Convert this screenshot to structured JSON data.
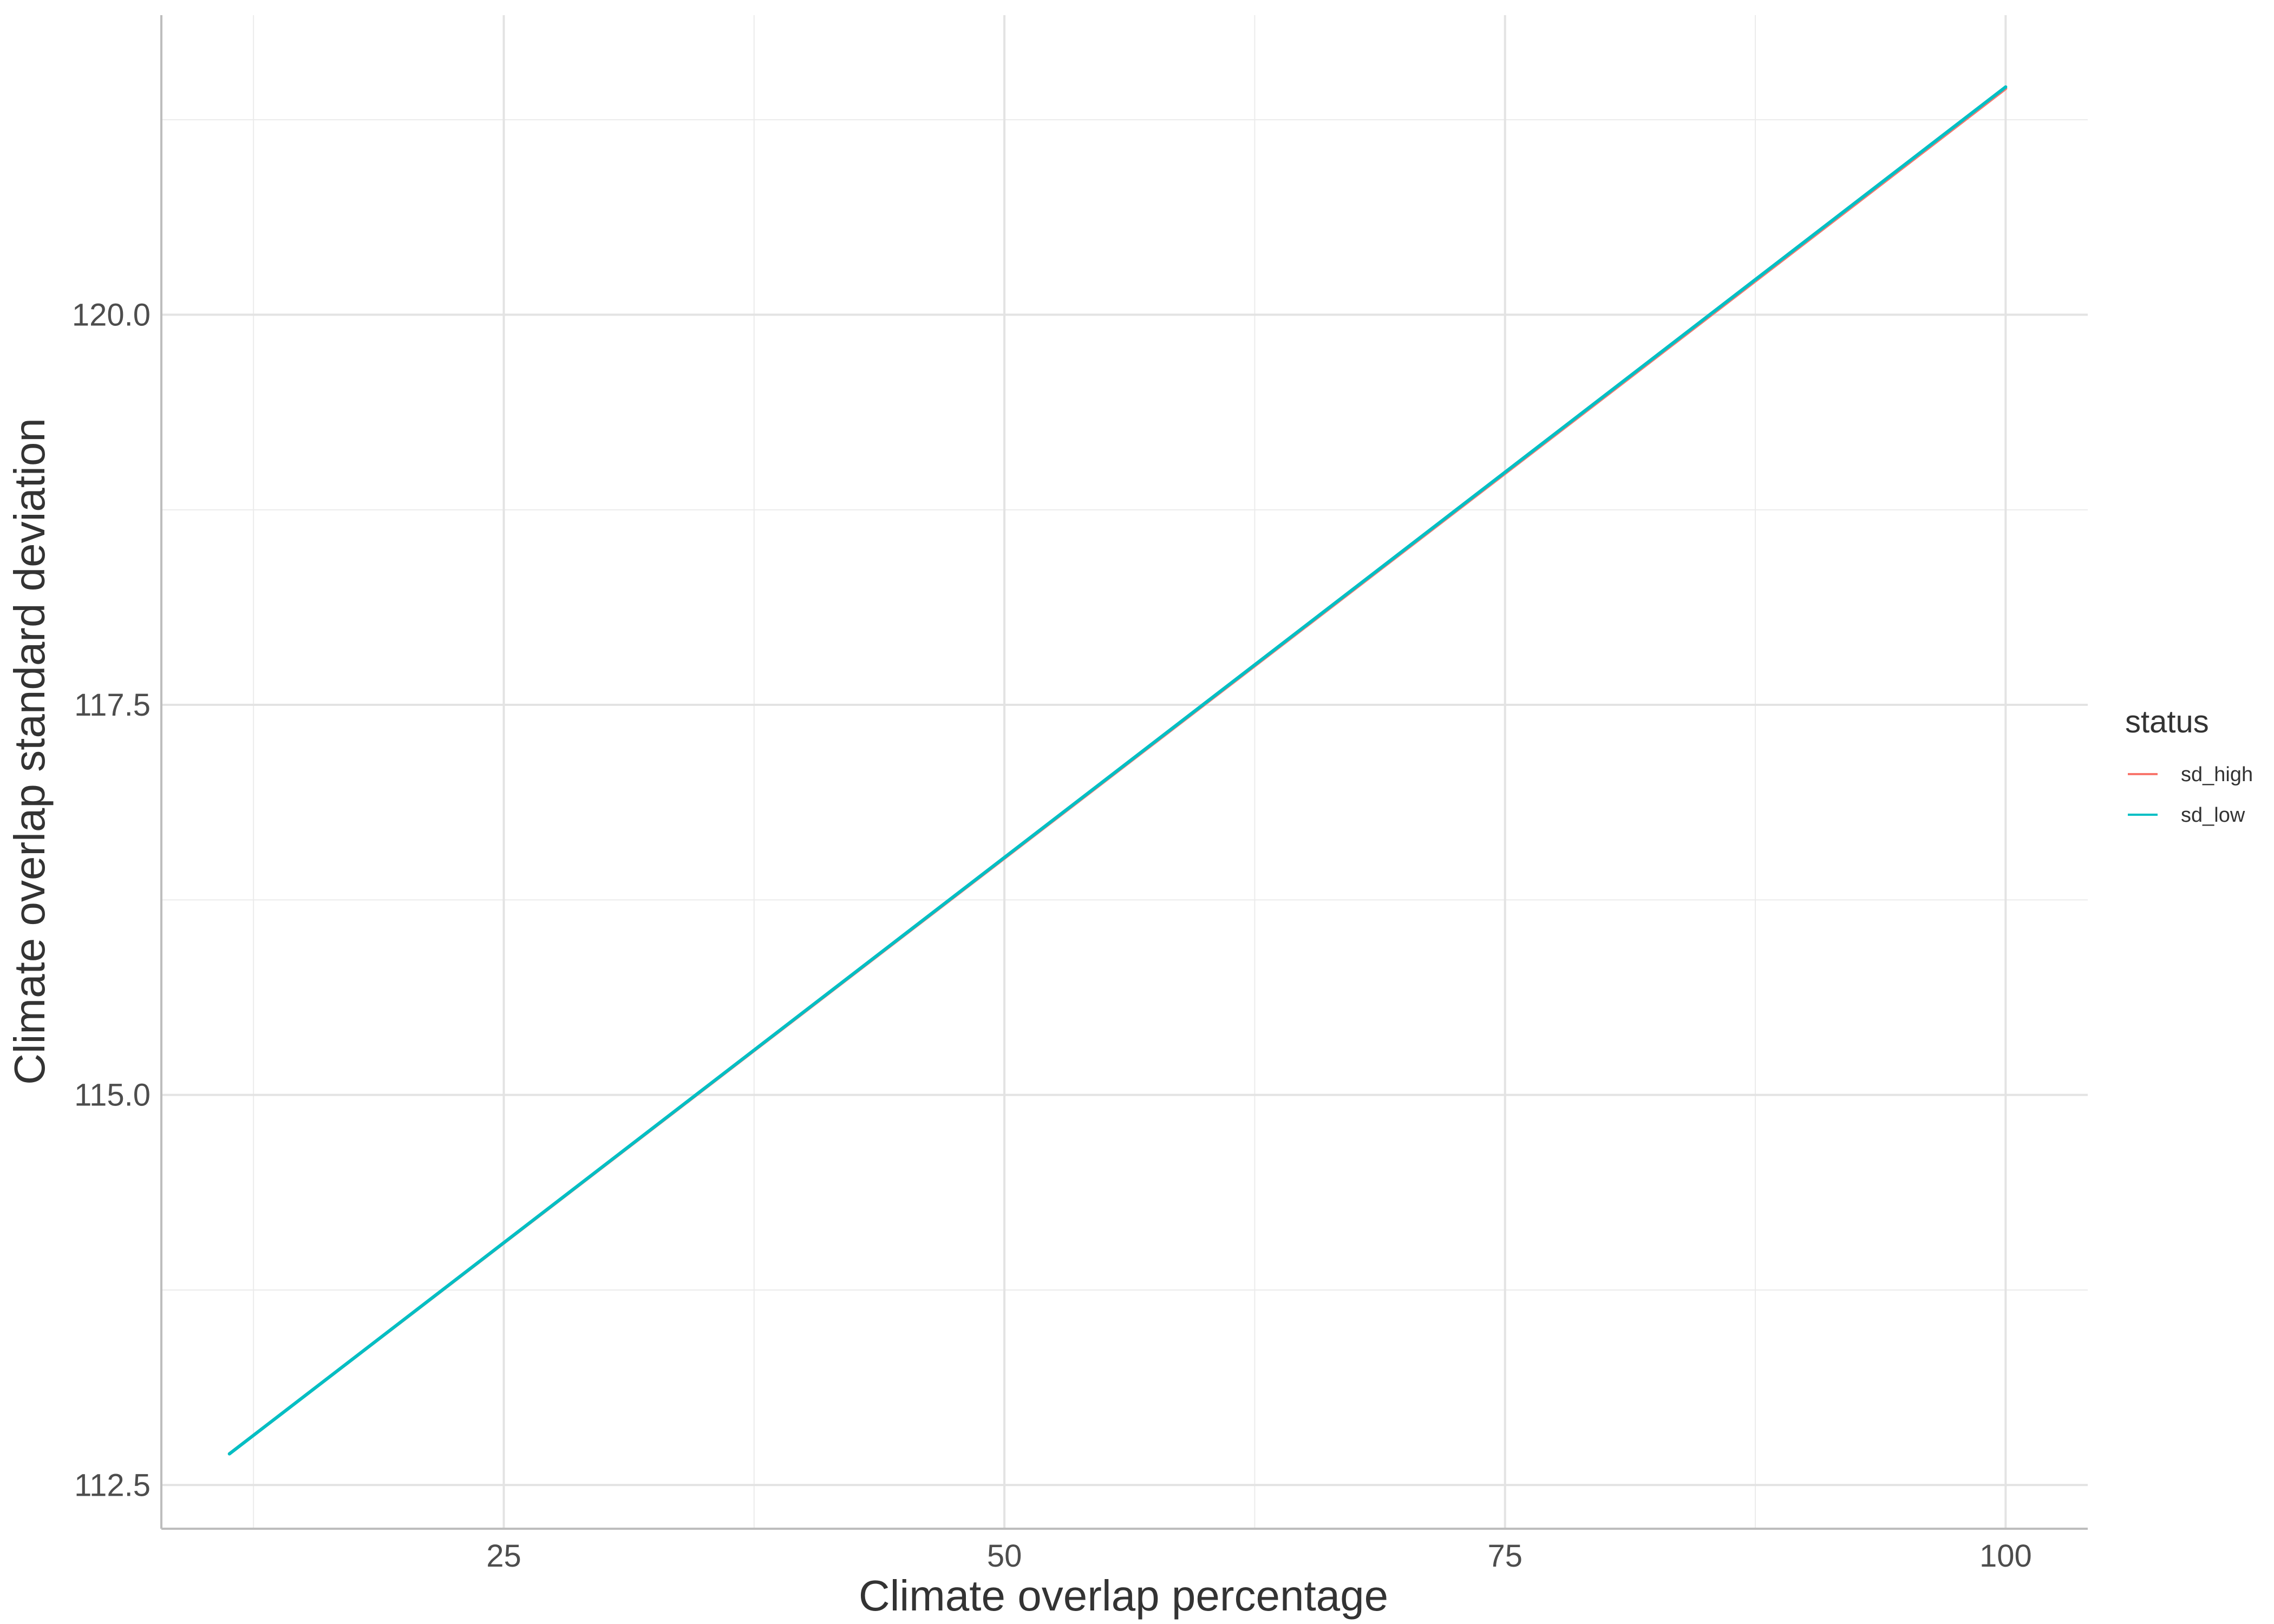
{
  "chart_data": {
    "type": "line",
    "title": "",
    "xlabel": "Climate overlap percentage",
    "ylabel": "Climate overlap standard deviation",
    "xlim": [
      7.9,
      104.1
    ],
    "ylim": [
      112.22,
      121.92
    ],
    "x_ticks": [
      25,
      50,
      75,
      100
    ],
    "x_minor_ticks": [
      12.5,
      37.5,
      62.5,
      87.5
    ],
    "y_ticks": [
      112.5,
      115.0,
      117.5,
      120.0
    ],
    "y_tick_labels": [
      "112.5",
      "115.0",
      "117.5",
      "120.0"
    ],
    "y_minor_ticks": [
      113.75,
      116.25,
      118.75,
      121.25
    ],
    "grid": true,
    "legend": {
      "title": "status",
      "position": "right"
    },
    "series": [
      {
        "name": "sd_high",
        "color": "#F8766D",
        "x": [
          11.3,
          100
        ],
        "y": [
          112.7,
          121.45
        ]
      },
      {
        "name": "sd_low",
        "color": "#00BFC4",
        "x": [
          11.3,
          100
        ],
        "y": [
          112.7,
          121.46
        ]
      }
    ]
  }
}
